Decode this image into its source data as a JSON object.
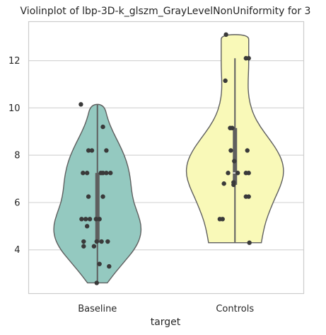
{
  "chart_data": {
    "type": "violin",
    "title": "Violinplot of lbp-3D-k_glszm_GrayLevelNonUniformity for 3",
    "xlabel": "target",
    "ylabel": "",
    "categories": [
      "Baseline",
      "Controls"
    ],
    "ylim": [
      2.15,
      13.65
    ],
    "yticks": [
      4,
      6,
      8,
      10,
      12
    ],
    "grid": "horizontal",
    "series": [
      {
        "category": "Baseline",
        "color": "#94c9c0",
        "box": {
          "q1": 4.3,
          "median": 5.3,
          "q3": 7.25,
          "whisker_low": 2.6,
          "whisker_high": 10.15
        },
        "points": [
          10.15,
          9.2,
          8.2,
          8.2,
          8.2,
          7.25,
          7.25,
          7.25,
          7.25,
          7.25,
          7.25,
          6.25,
          6.25,
          5.3,
          5.3,
          5.3,
          5.3,
          5.3,
          5.0,
          4.35,
          4.35,
          4.35,
          4.35,
          4.15,
          4.15,
          3.4,
          3.3,
          2.6
        ],
        "jitter": [
          -0.24,
          0.08,
          -0.13,
          -0.08,
          0.13,
          -0.21,
          -0.15,
          0.05,
          0.08,
          0.13,
          0.19,
          -0.13,
          0.08,
          -0.23,
          -0.17,
          -0.11,
          -0.02,
          0.03,
          -0.15,
          -0.2,
          -0.01,
          0.06,
          0.15,
          -0.2,
          -0.05,
          0.03,
          0.17,
          -0.01
        ],
        "density": [
          [
            2.6,
            0.18
          ],
          [
            3.0,
            0.31
          ],
          [
            3.5,
            0.49
          ],
          [
            4.0,
            0.67
          ],
          [
            4.5,
            0.78
          ],
          [
            5.0,
            0.8
          ],
          [
            5.5,
            0.74
          ],
          [
            6.0,
            0.66
          ],
          [
            6.5,
            0.62
          ],
          [
            7.0,
            0.6
          ],
          [
            7.5,
            0.56
          ],
          [
            8.0,
            0.49
          ],
          [
            8.5,
            0.39
          ],
          [
            9.0,
            0.28
          ],
          [
            9.5,
            0.19
          ],
          [
            10.15,
            0.12
          ]
        ]
      },
      {
        "category": "Controls",
        "color": "#f9f9b8",
        "box": {
          "q1": 6.75,
          "median": 7.25,
          "q3": 9.15,
          "whisker_low": 4.3,
          "whisker_high": 12.1
        },
        "points": [
          13.1,
          12.1,
          12.1,
          11.15,
          9.15,
          9.15,
          8.2,
          8.2,
          7.75,
          7.25,
          7.25,
          7.25,
          7.25,
          6.85,
          6.8,
          6.75,
          6.25,
          6.25,
          5.3,
          5.3,
          4.3
        ],
        "jitter": [
          -0.13,
          0.16,
          0.2,
          -0.14,
          -0.07,
          -0.04,
          -0.06,
          0.18,
          -0.01,
          -0.1,
          0.04,
          0.16,
          0.2,
          -0.02,
          -0.16,
          -0.02,
          0.16,
          0.2,
          -0.22,
          -0.18,
          0.21
        ],
        "density": [
          [
            4.3,
            0.48
          ],
          [
            4.7,
            0.51
          ],
          [
            5.2,
            0.56
          ],
          [
            5.7,
            0.64
          ],
          [
            6.2,
            0.73
          ],
          [
            6.7,
            0.83
          ],
          [
            7.2,
            0.89
          ],
          [
            7.7,
            0.87
          ],
          [
            8.2,
            0.77
          ],
          [
            8.7,
            0.62
          ],
          [
            9.2,
            0.46
          ],
          [
            9.7,
            0.34
          ],
          [
            10.2,
            0.27
          ],
          [
            10.7,
            0.24
          ],
          [
            11.2,
            0.24
          ],
          [
            11.7,
            0.25
          ],
          [
            12.2,
            0.25
          ],
          [
            12.7,
            0.25
          ],
          [
            13.1,
            0.25
          ]
        ]
      }
    ]
  }
}
